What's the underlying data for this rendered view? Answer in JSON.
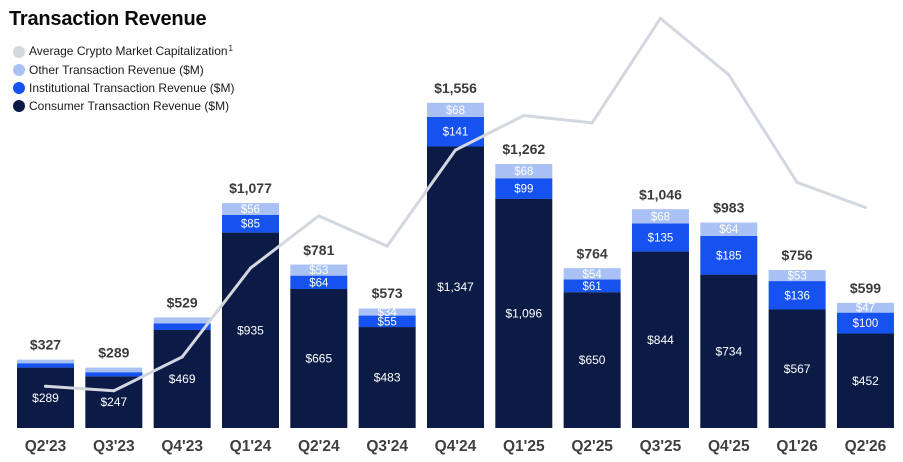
{
  "chart_data": {
    "type": "bar",
    "stacked": true,
    "title": "Transaction Revenue",
    "legend_position": "top-left",
    "grid": false,
    "categories": [
      "Q2'23",
      "Q3'23",
      "Q4'23",
      "Q1'24",
      "Q2'24",
      "Q3'24",
      "Q4'24",
      "Q1'25",
      "Q2'25",
      "Q3'25",
      "Q4'25",
      "Q1'26",
      "Q2'26"
    ],
    "series": [
      {
        "name": "Average Crypto Market Capitalization",
        "footnote_mark": "1",
        "type": "line",
        "color": "#d3d7df",
        "values": [
          200,
          178,
          340,
          765,
          1015,
          870,
          1330,
          1495,
          1460,
          1960,
          1690,
          1175,
          1055
        ]
      },
      {
        "name": "Other Transaction Revenue ($M)",
        "type": "bar",
        "color": "#a9c1f5",
        "values": [
          17,
          22,
          28,
          56,
          53,
          34,
          68,
          68,
          54,
          68,
          64,
          53,
          47
        ],
        "labels": [
          null,
          null,
          null,
          "$56",
          "$53",
          "$34",
          "$68",
          "$68",
          "$54",
          "$68",
          "$64",
          "$53",
          "$47"
        ]
      },
      {
        "name": "Institutional Transaction Revenue ($M)",
        "type": "bar",
        "color": "#1652f0",
        "values": [
          21,
          20,
          32,
          85,
          64,
          55,
          141,
          99,
          61,
          135,
          185,
          136,
          100
        ],
        "labels": [
          null,
          null,
          null,
          "$85",
          "$64",
          "$55",
          "$141",
          "$99",
          "$61",
          "$135",
          "$185",
          "$136",
          "$100"
        ]
      },
      {
        "name": "Consumer Transaction Revenue ($M)",
        "type": "bar",
        "color": "#0b1b46",
        "values": [
          289,
          247,
          469,
          935,
          665,
          483,
          1347,
          1096,
          650,
          844,
          734,
          567,
          452
        ],
        "labels": [
          "$289",
          "$247",
          "$469",
          "$935",
          "$665",
          "$483",
          "$1,347",
          "$1,096",
          "$650",
          "$844",
          "$734",
          "$567",
          "$452"
        ]
      }
    ],
    "totals": [
      327,
      289,
      529,
      1077,
      781,
      573,
      1556,
      1262,
      764,
      1046,
      983,
      756,
      599
    ],
    "total_labels": [
      "$327",
      "$289",
      "$529",
      "$1,077",
      "$781",
      "$573",
      "$1,556",
      "$1,262",
      "$764",
      "$1,046",
      "$983",
      "$756",
      "$599"
    ]
  }
}
